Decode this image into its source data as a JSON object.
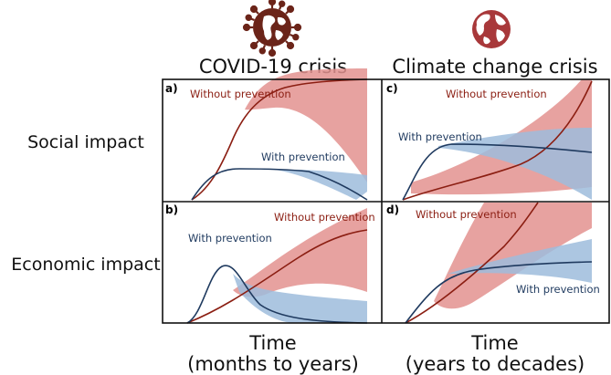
{
  "columns": {
    "covid": "COVID-19 crisis",
    "climate": "Climate change crisis"
  },
  "rows": {
    "social": "Social impact",
    "economic": "Economic impact"
  },
  "x_axis": {
    "covid_line1": "Time",
    "covid_line2": "(months to years)",
    "climate_line1": "Time",
    "climate_line2": "(years to decades)"
  },
  "panels": {
    "a": {
      "letter": "a)",
      "without": "Without prevention",
      "with": "With prevention"
    },
    "b": {
      "letter": "b)",
      "without": "Without prevention",
      "with": "With prevention"
    },
    "c": {
      "letter": "c)",
      "without": "Without prevention",
      "with": "With prevention"
    },
    "d": {
      "letter": "d)",
      "without": "Without prevention",
      "with": "With prevention"
    }
  },
  "colors": {
    "without_line": "#8b1e12",
    "without_band": "#e3928f",
    "with_line": "#1f3a5f",
    "with_band": "#9dbcdc",
    "virus_icon": "#6b2419",
    "globe_icon": "#a8383a"
  },
  "icons": {
    "covid": "coronavirus-icon",
    "climate": "globe-icon"
  }
}
